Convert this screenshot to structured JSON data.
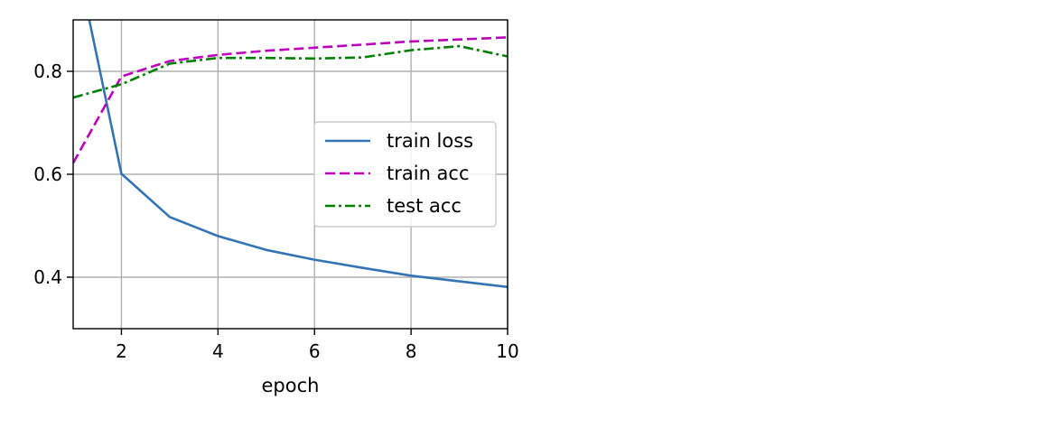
{
  "chart_data": {
    "type": "line",
    "xlabel": "epoch",
    "ylabel": "",
    "title": "",
    "xlim": [
      1,
      10
    ],
    "ylim": [
      0.3,
      0.9
    ],
    "xticks": [
      2,
      4,
      6,
      8,
      10
    ],
    "yticks": [
      0.4,
      0.6,
      0.8
    ],
    "xtick_labels": [
      "2",
      "4",
      "6",
      "8",
      "10"
    ],
    "ytick_labels": [
      "0.4",
      "0.6",
      "0.8"
    ],
    "grid": true,
    "legend_position": "center-right",
    "series": [
      {
        "name": "train loss",
        "color": "#3274b5",
        "dash": "solid",
        "x": [
          1,
          2,
          3,
          4,
          5,
          6,
          7,
          8,
          9,
          10
        ],
        "y": [
          1.05,
          0.601,
          0.517,
          0.48,
          0.453,
          0.434,
          0.418,
          0.403,
          0.392,
          0.381
        ]
      },
      {
        "name": "train acc",
        "color": "#bf00bf",
        "dash": "dashed",
        "x": [
          1,
          2,
          3,
          4,
          5,
          6,
          7,
          8,
          9,
          10
        ],
        "y": [
          0.622,
          0.79,
          0.82,
          0.832,
          0.84,
          0.846,
          0.852,
          0.858,
          0.862,
          0.866
        ]
      },
      {
        "name": "test acc",
        "color": "#008000",
        "dash": "dashdot",
        "x": [
          1,
          2,
          3,
          4,
          5,
          6,
          7,
          8,
          9,
          10
        ],
        "y": [
          0.749,
          0.775,
          0.815,
          0.826,
          0.826,
          0.825,
          0.827,
          0.841,
          0.849,
          0.829
        ]
      }
    ]
  }
}
